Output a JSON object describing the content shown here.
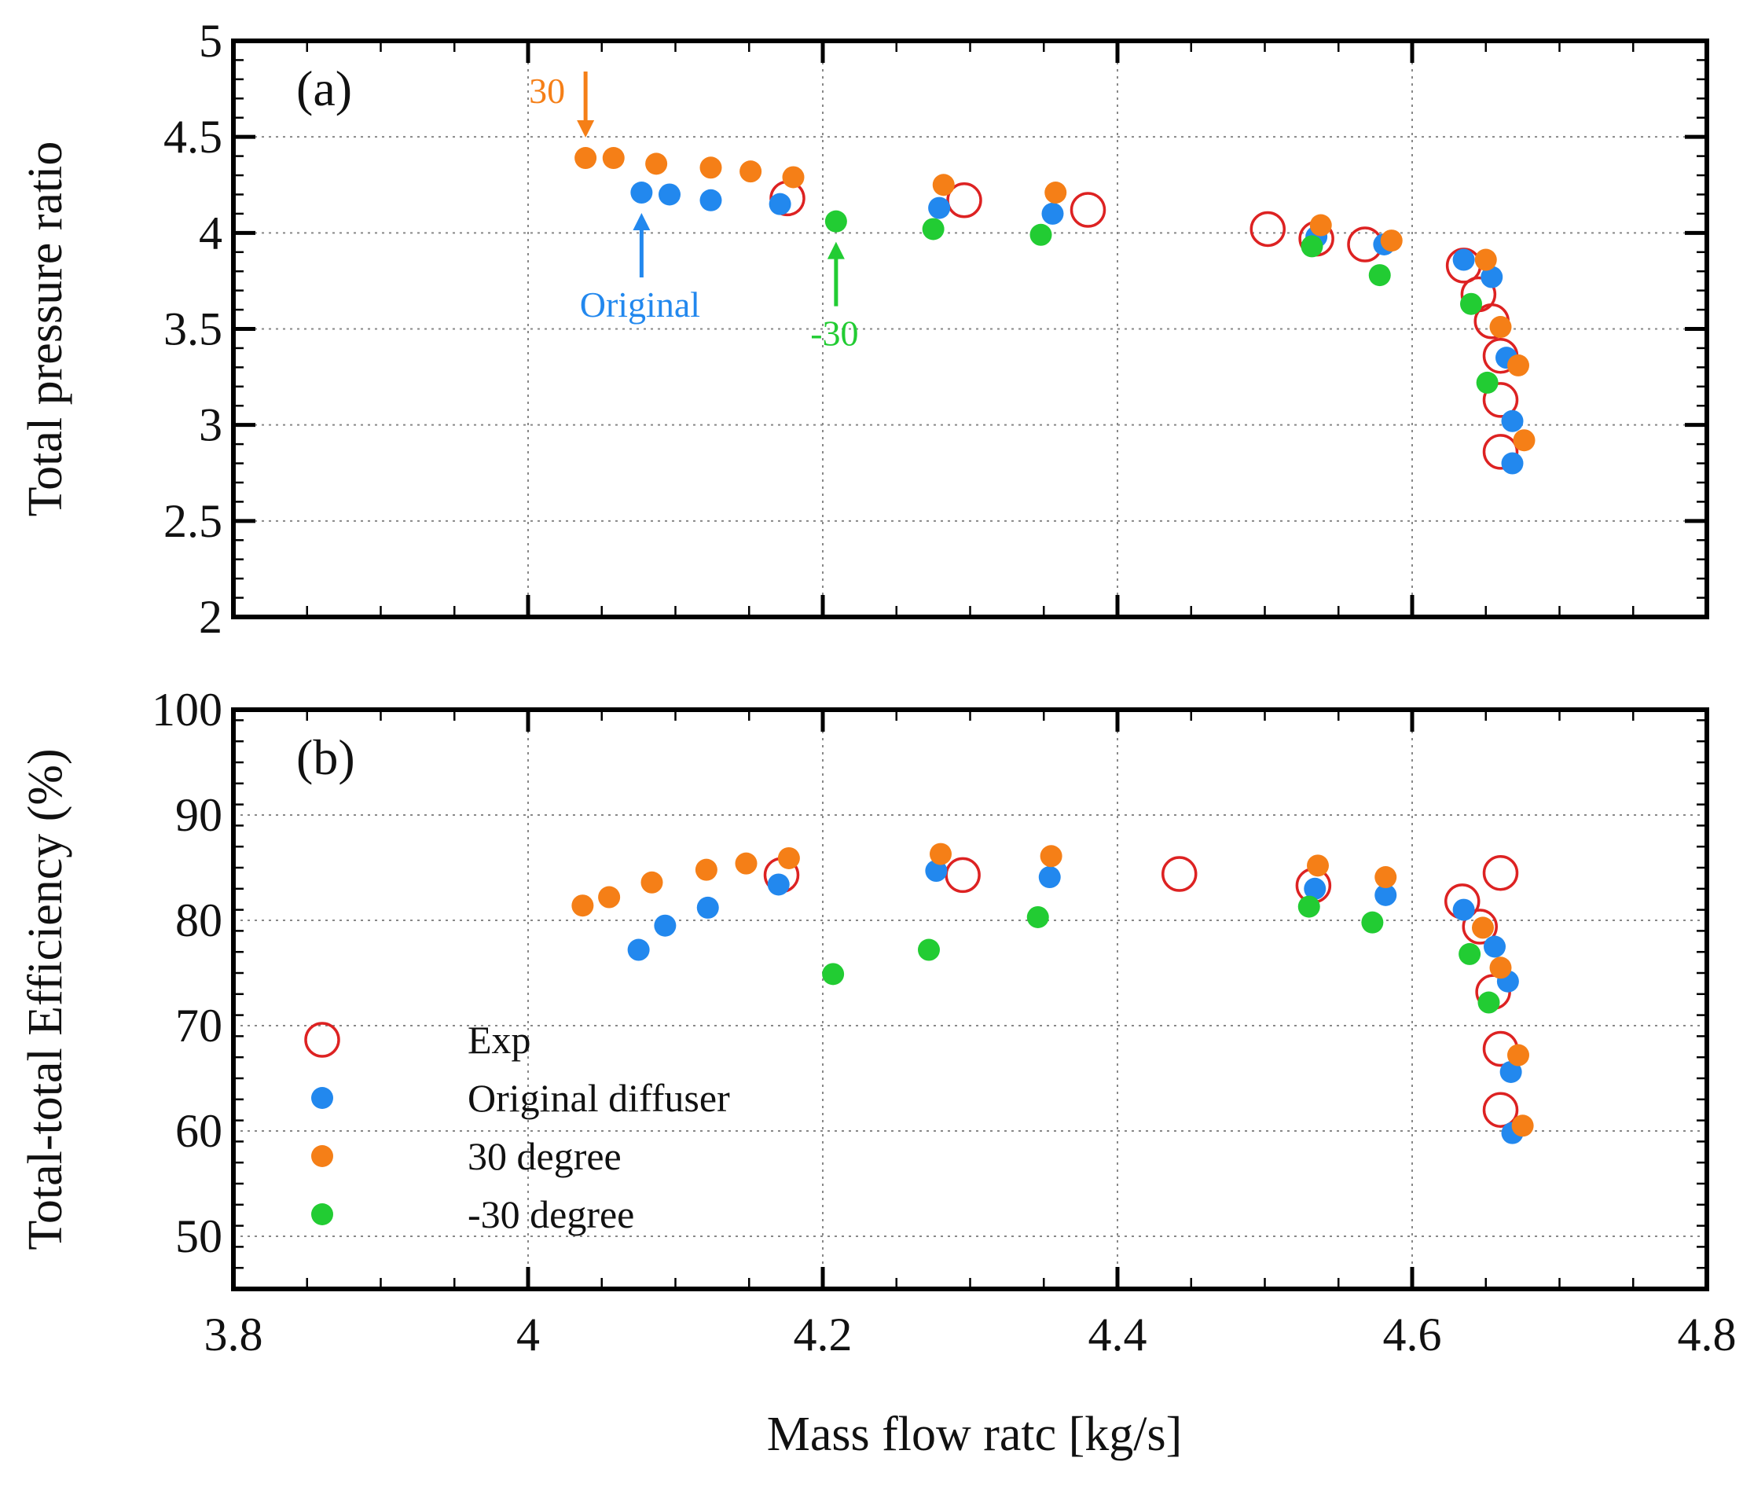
{
  "figure": {
    "xlabel": "Mass flow ratc [kg/s]",
    "xlim": [
      3.8,
      4.8
    ],
    "xticks": [
      "3.8",
      "4",
      "4.2",
      "4.4",
      "4.6",
      "4.8"
    ],
    "x_tick_values": [
      3.8,
      4.0,
      4.2,
      4.4,
      4.6,
      4.8
    ],
    "colors": {
      "exp": "#dd2222",
      "original": "#2288ee",
      "deg30": "#f57f17",
      "deg_neg30": "#22cc33"
    }
  },
  "legend": {
    "items": [
      {
        "label": "Exp",
        "series": "exp",
        "marker": "open-circle"
      },
      {
        "label": "Original diffuser",
        "series": "original",
        "marker": "filled-circle"
      },
      {
        "label": "30 degree",
        "series": "deg30",
        "marker": "filled-circle"
      },
      {
        "label": "-30 degree",
        "series": "deg_neg30",
        "marker": "filled-circle"
      }
    ]
  },
  "chart_data": [
    {
      "type": "scatter",
      "panel_label": "(a)",
      "title": "",
      "xlabel": "Mass flow ratc [kg/s]",
      "ylabel": "Total pressure ratio",
      "xlim": [
        3.8,
        4.8
      ],
      "ylim": [
        2,
        5
      ],
      "yticks": [
        "2",
        "2.5",
        "3",
        "3.5",
        "4",
        "4.5",
        "5"
      ],
      "y_tick_values": [
        2,
        2.5,
        3,
        3.5,
        4,
        4.5,
        5
      ],
      "grid": true,
      "annotations": [
        {
          "text": "30",
          "series": "deg30",
          "direction": "down",
          "x": 4.039,
          "y": 4.39
        },
        {
          "text": "Original",
          "series": "original",
          "direction": "up",
          "x": 4.077,
          "y": 4.21
        },
        {
          "text": "-30",
          "series": "deg_neg30",
          "direction": "up",
          "x": 4.209,
          "y": 4.06
        }
      ],
      "series": [
        {
          "name": "Exp",
          "key": "exp",
          "x": [
            4.176,
            4.296,
            4.38,
            4.502,
            4.535,
            4.568,
            4.635,
            4.645,
            4.654,
            4.66,
            4.66,
            4.66
          ],
          "y": [
            4.18,
            4.17,
            4.12,
            4.02,
            3.97,
            3.94,
            3.83,
            3.68,
            3.54,
            3.36,
            3.13,
            2.86
          ]
        },
        {
          "name": "Original diffuser",
          "key": "original",
          "x": [
            4.077,
            4.096,
            4.124,
            4.171,
            4.279,
            4.356,
            4.535,
            4.581,
            4.635,
            4.654,
            4.664,
            4.668,
            4.668
          ],
          "y": [
            4.21,
            4.2,
            4.17,
            4.15,
            4.13,
            4.1,
            3.98,
            3.94,
            3.86,
            3.77,
            3.35,
            3.02,
            2.8
          ]
        },
        {
          "name": "30 degree",
          "key": "deg30",
          "x": [
            4.039,
            4.058,
            4.087,
            4.124,
            4.151,
            4.18,
            4.282,
            4.358,
            4.538,
            4.586,
            4.65,
            4.66,
            4.672,
            4.676
          ],
          "y": [
            4.39,
            4.39,
            4.36,
            4.34,
            4.32,
            4.29,
            4.25,
            4.21,
            4.04,
            3.96,
            3.86,
            3.51,
            3.31,
            2.92
          ]
        },
        {
          "name": "-30 degree",
          "key": "deg_neg30",
          "x": [
            4.209,
            4.275,
            4.348,
            4.532,
            4.578,
            4.64,
            4.651
          ],
          "y": [
            4.06,
            4.02,
            3.99,
            3.93,
            3.78,
            3.63,
            3.22
          ]
        }
      ]
    },
    {
      "type": "scatter",
      "panel_label": "(b)",
      "title": "",
      "xlabel": "Mass flow ratc [kg/s]",
      "ylabel": "Total-total Efficiency (%)",
      "xlim": [
        3.8,
        4.8
      ],
      "ylim": [
        45,
        100
      ],
      "yticks": [
        "50",
        "60",
        "70",
        "80",
        "90",
        "100"
      ],
      "y_tick_values": [
        50,
        60,
        70,
        80,
        90,
        100
      ],
      "grid": true,
      "legend_position": "bottom-left",
      "series": [
        {
          "name": "Exp",
          "key": "exp",
          "x": [
            4.172,
            4.295,
            4.442,
            4.533,
            4.634,
            4.646,
            4.655,
            4.66,
            4.66,
            4.66
          ],
          "y": [
            84.3,
            84.3,
            84.4,
            83.3,
            81.8,
            79.4,
            73.2,
            67.8,
            62.0,
            84.5
          ]
        },
        {
          "name": "Original diffuser",
          "key": "original",
          "x": [
            4.075,
            4.093,
            4.122,
            4.17,
            4.277,
            4.354,
            4.534,
            4.582,
            4.635,
            4.656,
            4.665,
            4.667,
            4.668
          ],
          "y": [
            77.2,
            79.5,
            81.2,
            83.4,
            84.7,
            84.1,
            83.0,
            82.4,
            81.0,
            77.5,
            74.2,
            65.6,
            59.8
          ]
        },
        {
          "name": "30 degree",
          "key": "deg30",
          "x": [
            4.037,
            4.055,
            4.084,
            4.121,
            4.148,
            4.177,
            4.28,
            4.355,
            4.536,
            4.582,
            4.648,
            4.66,
            4.672,
            4.675
          ],
          "y": [
            81.4,
            82.2,
            83.6,
            84.8,
            85.4,
            85.9,
            86.3,
            86.1,
            85.2,
            84.1,
            79.3,
            75.5,
            67.2,
            60.5
          ]
        },
        {
          "name": "-30 degree",
          "key": "deg_neg30",
          "x": [
            4.207,
            4.272,
            4.346,
            4.53,
            4.573,
            4.639,
            4.652
          ],
          "y": [
            74.9,
            77.2,
            80.3,
            81.3,
            79.8,
            76.8,
            72.2
          ]
        }
      ]
    }
  ]
}
